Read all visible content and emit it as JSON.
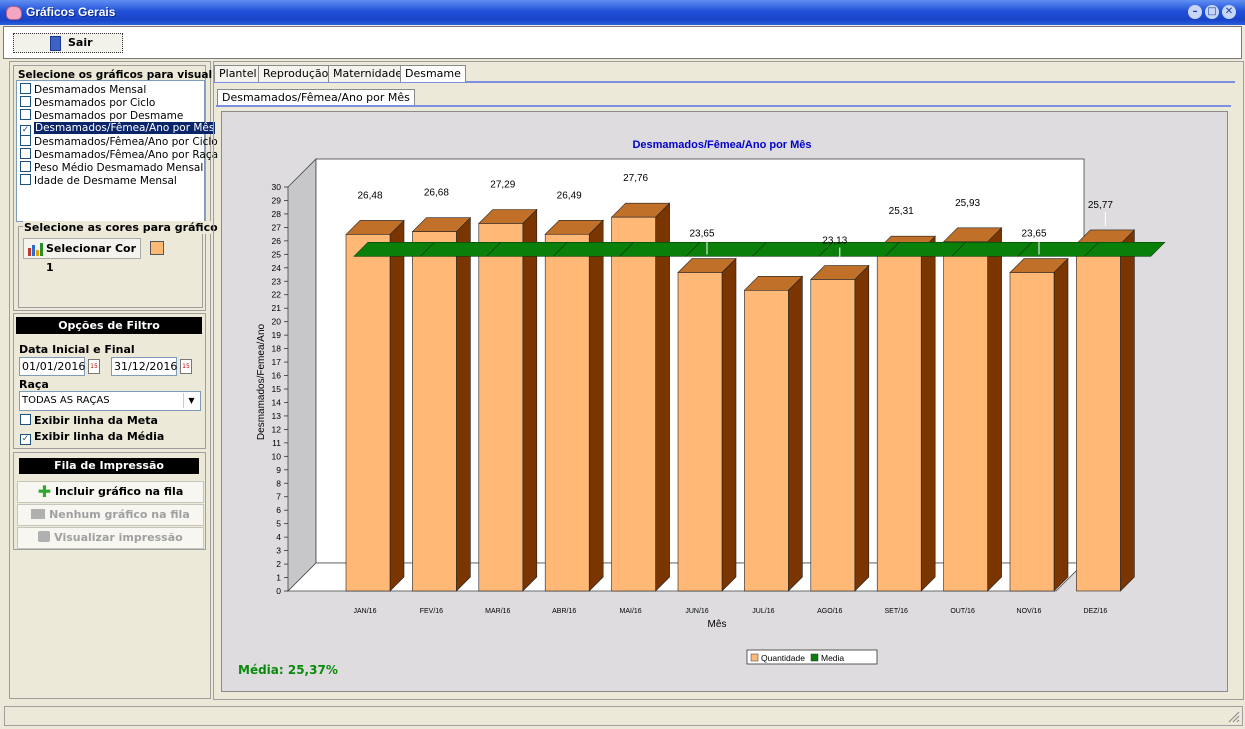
{
  "window": {
    "title": "Gráficos Gerais"
  },
  "toolbar": {
    "exit_label": "Sair"
  },
  "chart_select": {
    "title": "Selecione os gráficos para visualizar",
    "items": [
      {
        "label": "Desmamados Mensal",
        "checked": false,
        "selected": false
      },
      {
        "label": "Desmamados por Ciclo",
        "checked": false,
        "selected": false
      },
      {
        "label": "Desmamados por Desmame",
        "checked": false,
        "selected": false
      },
      {
        "label": "Desmamados/Fêmea/Ano por Mês",
        "checked": true,
        "selected": true
      },
      {
        "label": "Desmamados/Fêmea/Ano por Ciclo",
        "checked": false,
        "selected": false
      },
      {
        "label": "Desmamados/Fêmea/Ano por Raça",
        "checked": false,
        "selected": false
      },
      {
        "label": "Peso Médio Desmamado Mensal",
        "checked": false,
        "selected": false
      },
      {
        "label": "Idade de Desmame Mensal",
        "checked": false,
        "selected": false
      }
    ]
  },
  "colors": {
    "title": "Selecione as cores para gráfico",
    "button_label": "Selecionar Cor 1",
    "swatch": "#ffb876"
  },
  "filters": {
    "header": "Opções de Filtro",
    "date_label": "Data Inicial e Final",
    "date_start": "01/01/2016",
    "date_end": "31/12/2016",
    "breed_label": "Raça",
    "breed_value": "TODAS AS RAÇAS",
    "show_goal_label": "Exibir linha da Meta",
    "show_goal": false,
    "show_avg_label": "Exibir linha da Média",
    "show_avg": true
  },
  "print_queue": {
    "header": "Fila de Impressão",
    "include_label": "Incluir gráfico na fila",
    "none_label": "Nenhum gráfico na fila",
    "preview_label": "Visualizar impressão"
  },
  "tabs": [
    "Plantel",
    "Reprodução",
    "Maternidade",
    "Desmame"
  ],
  "subtab": "Desmamados/Fêmea/Ano por Mês",
  "average_text": "Média: 25,37%",
  "chart_data": {
    "type": "bar",
    "title": "Desmamados/Fêmea/Ano por Mês",
    "xlabel": "Mês",
    "ylabel": "Desmamados/Femea/Ano",
    "ylim": [
      0,
      30
    ],
    "yticks": [
      "0",
      "1",
      "2",
      "3",
      "4",
      "5",
      "6",
      "7",
      "8",
      "9",
      "10",
      "11",
      "12",
      "13",
      "14",
      "15",
      "16",
      "17",
      "18",
      "19",
      "20",
      "21",
      "22",
      "23",
      "24",
      "25",
      "26",
      "27",
      "28",
      "29",
      "30"
    ],
    "categories": [
      "JAN/16",
      "FEV/16",
      "MAR/16",
      "ABR/16",
      "MAI/16",
      "JUN/16",
      "JUL/16",
      "AGO/16",
      "SET/16",
      "OUT/16",
      "NOV/16",
      "DEZ/16"
    ],
    "series": [
      {
        "name": "Quantidade",
        "values": [
          26.48,
          26.68,
          27.29,
          26.49,
          27.76,
          23.65,
          22.33,
          23.13,
          25.31,
          25.93,
          23.65,
          25.77
        ],
        "color": "#ffb876"
      },
      {
        "name": "Media",
        "values": [
          25.37,
          25.37,
          25.37,
          25.37,
          25.37,
          25.37,
          25.37,
          25.37,
          25.37,
          25.37,
          25.37,
          25.37
        ],
        "color": "#0a800a"
      }
    ],
    "data_labels": [
      "26,48",
      "26,68",
      "27,29",
      "26,49",
      "27,76",
      "23,65",
      "",
      "23,13",
      "25,31",
      "25,93",
      "23,65",
      "25,77"
    ],
    "legend_position": "bottom",
    "grid": false
  }
}
